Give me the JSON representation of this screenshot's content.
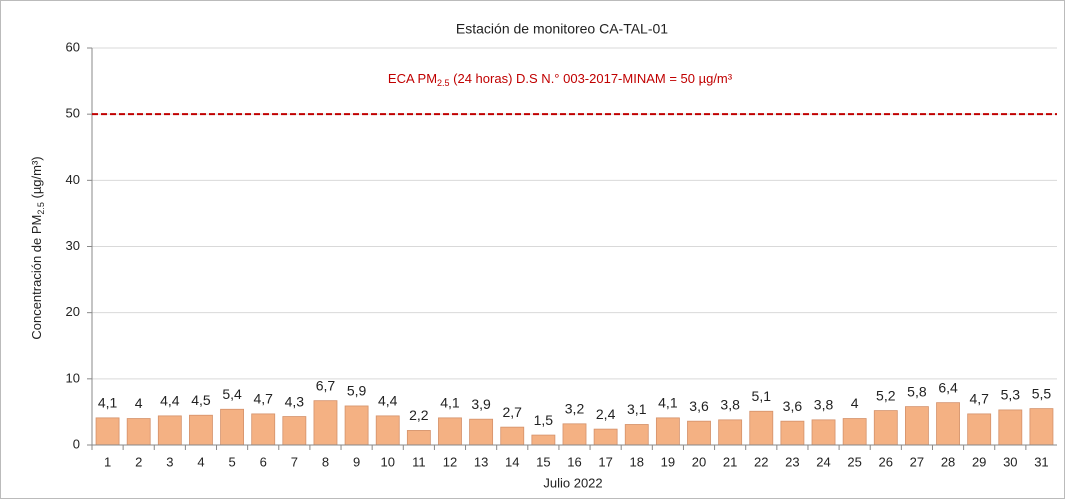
{
  "chart_data": {
    "type": "bar",
    "title": "Estación de monitoreo CA-TAL-01",
    "xlabel": "Julio 2022",
    "ylabel_parts": [
      "Concentración de PM",
      "2.5",
      " (µg/m³)"
    ],
    "categories": [
      "1",
      "2",
      "3",
      "4",
      "5",
      "6",
      "7",
      "8",
      "9",
      "10",
      "11",
      "12",
      "13",
      "14",
      "15",
      "16",
      "17",
      "18",
      "19",
      "20",
      "21",
      "22",
      "23",
      "24",
      "25",
      "26",
      "27",
      "28",
      "29",
      "30",
      "31"
    ],
    "values": [
      4.1,
      4,
      4.4,
      4.5,
      5.4,
      4.7,
      4.3,
      6.7,
      5.9,
      4.4,
      2.2,
      4.1,
      3.9,
      2.7,
      1.5,
      3.2,
      2.4,
      3.1,
      4.1,
      3.6,
      3.8,
      5.1,
      3.6,
      3.8,
      4,
      5.2,
      5.8,
      6.4,
      4.7,
      5.3,
      5.5
    ],
    "value_labels": [
      "4,1",
      "4",
      "4,4",
      "4,5",
      "5,4",
      "4,7",
      "4,3",
      "6,7",
      "5,9",
      "4,4",
      "2,2",
      "4,1",
      "3,9",
      "2,7",
      "1,5",
      "3,2",
      "2,4",
      "3,1",
      "4,1",
      "3,6",
      "3,8",
      "5,1",
      "3,6",
      "3,8",
      "4",
      "5,2",
      "5,8",
      "6,4",
      "4,7",
      "5,3",
      "5,5"
    ],
    "color": "#f4b183",
    "ylim": [
      0,
      60
    ],
    "yticks": [
      0,
      10,
      20,
      30,
      40,
      50,
      60
    ],
    "grid": true,
    "reference_line": {
      "value": 50,
      "color": "#c00000",
      "label_parts": [
        "ECA PM",
        "2.5",
        " (24 horas) D.S N.° 003-2017-MINAM = 50 µg/m³"
      ]
    }
  }
}
